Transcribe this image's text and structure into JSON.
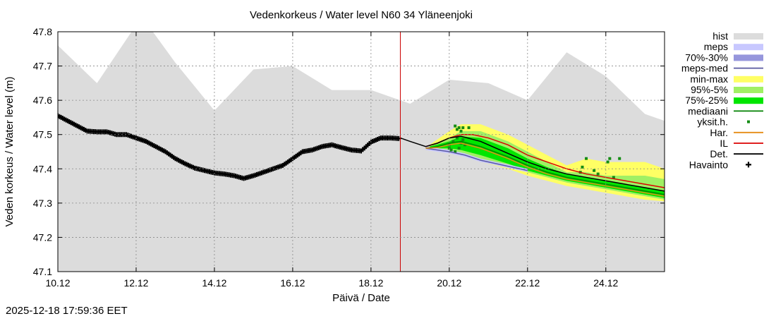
{
  "chart_data": {
    "type": "line",
    "title": "Vedenkorkeus / Water level   N60 34 Yläneenjoki",
    "xlabel": "Päivä / Date",
    "ylabel": "Veden korkeus / Water level (m)",
    "timestamp": "2025-12-18 17:59:36 EET",
    "xlim": [
      10.0,
      25.5
    ],
    "ylim": [
      47.1,
      47.8
    ],
    "x_ticks": [
      {
        "x": 10.0,
        "label": "10.12"
      },
      {
        "x": 12.0,
        "label": "12.12"
      },
      {
        "x": 14.0,
        "label": "14.12"
      },
      {
        "x": 16.0,
        "label": "16.12"
      },
      {
        "x": 18.0,
        "label": "18.12"
      },
      {
        "x": 20.0,
        "label": "20.12"
      },
      {
        "x": 22.0,
        "label": "22.12"
      },
      {
        "x": 24.0,
        "label": "24.12"
      }
    ],
    "y_ticks": [
      "47.1",
      "47.2",
      "47.3",
      "47.4",
      "47.5",
      "47.6",
      "47.7",
      "47.8"
    ],
    "forecast_start": 18.75,
    "colors": {
      "hist": "#dcdcdc",
      "meps": "#c8c8ff",
      "meps_70_30": "#9696dc",
      "meps_med": "#5a5aa0",
      "minmax": "#ffff64",
      "p95_5": "#a0f064",
      "p75_25": "#00e600",
      "median": "#008000",
      "single": "#148c14",
      "har": "#e68c14",
      "il": "#dc0000",
      "det": "#000000",
      "obs": "#000000",
      "forecast_line": "#cc0000"
    },
    "legend": [
      {
        "key": "hist",
        "label": "hist",
        "style": "band"
      },
      {
        "key": "meps",
        "label": "meps",
        "style": "band"
      },
      {
        "key": "meps_70_30",
        "label": "70%-30%",
        "style": "band"
      },
      {
        "key": "meps_med",
        "label": "meps-med",
        "style": "line"
      },
      {
        "key": "minmax",
        "label": "min-max",
        "style": "band"
      },
      {
        "key": "p95_5",
        "label": "95%-5%",
        "style": "band"
      },
      {
        "key": "p75_25",
        "label": "75%-25%",
        "style": "band"
      },
      {
        "key": "median",
        "label": "mediaani",
        "style": "line"
      },
      {
        "key": "single",
        "label": "yksit.h.",
        "style": "dot"
      },
      {
        "key": "har",
        "label": "Har.",
        "style": "line"
      },
      {
        "key": "il",
        "label": "IL",
        "style": "line"
      },
      {
        "key": "det",
        "label": "Det.",
        "style": "line"
      },
      {
        "key": "obs",
        "label": "Havainto",
        "style": "plus"
      }
    ],
    "hist_upper": [
      [
        10.0,
        47.76
      ],
      [
        11.0,
        47.65
      ],
      [
        12.0,
        47.82
      ],
      [
        12.3,
        47.82
      ],
      [
        13.0,
        47.71
      ],
      [
        14.0,
        47.57
      ],
      [
        15.0,
        47.69
      ],
      [
        16.0,
        47.7
      ],
      [
        17.0,
        47.63
      ],
      [
        18.0,
        47.63
      ],
      [
        19.0,
        47.59
      ],
      [
        20.0,
        47.66
      ],
      [
        21.0,
        47.65
      ],
      [
        22.0,
        47.6
      ],
      [
        23.0,
        47.74
      ],
      [
        24.0,
        47.67
      ],
      [
        25.0,
        47.56
      ],
      [
        25.5,
        47.54
      ]
    ],
    "minmax": {
      "x": [
        19.5,
        20.0,
        20.3,
        20.8,
        21.5,
        22.0,
        22.5,
        23.0,
        23.5,
        24.0,
        24.5,
        25.0,
        25.5
      ],
      "lo": [
        47.455,
        47.45,
        47.44,
        47.42,
        47.4,
        47.38,
        47.365,
        47.35,
        47.34,
        47.33,
        47.32,
        47.31,
        47.305
      ],
      "hi": [
        47.47,
        47.51,
        47.53,
        47.53,
        47.5,
        47.47,
        47.44,
        47.41,
        47.43,
        47.42,
        47.42,
        47.42,
        47.4
      ]
    },
    "p95_5": {
      "x": [
        19.5,
        20.0,
        20.3,
        20.8,
        21.5,
        22.0,
        22.5,
        23.0,
        23.5,
        24.0,
        24.5,
        25.0,
        25.5
      ],
      "lo": [
        47.46,
        47.455,
        47.445,
        47.43,
        47.405,
        47.39,
        47.375,
        47.36,
        47.35,
        47.34,
        47.33,
        47.32,
        47.31
      ],
      "hi": [
        47.465,
        47.49,
        47.51,
        47.51,
        47.48,
        47.45,
        47.42,
        47.39,
        47.39,
        47.38,
        47.38,
        47.38,
        47.37
      ]
    },
    "p75_25": {
      "x": [
        19.5,
        20.0,
        20.3,
        20.8,
        21.5,
        22.0,
        22.5,
        23.0,
        23.5,
        24.0,
        24.5,
        25.0,
        25.5
      ],
      "lo": [
        47.46,
        47.46,
        47.455,
        47.44,
        47.415,
        47.395,
        47.38,
        47.365,
        47.355,
        47.345,
        47.335,
        47.325,
        47.315
      ],
      "hi": [
        47.465,
        47.48,
        47.495,
        47.49,
        47.46,
        47.43,
        47.405,
        47.385,
        47.375,
        47.365,
        47.355,
        47.345,
        47.335
      ]
    },
    "median": {
      "x": [
        19.4,
        19.7,
        20.0,
        20.3,
        20.8,
        21.5,
        22.0,
        22.5,
        23.0,
        23.5,
        24.0,
        24.5,
        25.0,
        25.5
      ],
      "y": [
        47.46,
        47.465,
        47.475,
        47.48,
        47.465,
        47.435,
        47.41,
        47.39,
        47.375,
        47.365,
        47.355,
        47.345,
        47.335,
        47.325
      ]
    },
    "det": {
      "x": [
        18.75,
        19.0,
        19.4,
        19.7,
        20.0,
        20.3,
        20.8,
        21.5,
        22.0,
        22.5,
        23.0,
        23.5,
        24.0,
        24.5,
        25.0,
        25.5
      ],
      "y": [
        47.49,
        47.48,
        47.465,
        47.475,
        47.49,
        47.495,
        47.48,
        47.445,
        47.42,
        47.4,
        47.385,
        47.375,
        47.365,
        47.355,
        47.345,
        47.335
      ]
    },
    "il": {
      "x": [
        19.4,
        19.7,
        20.0,
        20.3,
        20.6,
        21.0,
        21.5,
        22.0,
        22.5,
        23.0,
        23.5,
        24.0,
        24.5,
        25.0,
        25.5
      ],
      "y": [
        47.465,
        47.475,
        47.49,
        47.5,
        47.5,
        47.49,
        47.47,
        47.44,
        47.42,
        47.4,
        47.385,
        47.375,
        47.365,
        47.355,
        47.345
      ]
    },
    "har": {
      "x": [
        19.4,
        19.7,
        20.0,
        20.3,
        20.8,
        21.5,
        22.0,
        22.5,
        23.0,
        23.5,
        24.0,
        24.5,
        25.0,
        25.5
      ],
      "y": [
        47.46,
        47.462,
        47.47,
        47.475,
        47.46,
        47.43,
        47.405,
        47.385,
        47.37,
        47.36,
        47.35,
        47.34,
        47.33,
        47.32
      ]
    },
    "meps_med": {
      "x": [
        19.4,
        19.7,
        20.0,
        20.4,
        20.8,
        21.2,
        21.6,
        22.0
      ],
      "y": [
        47.46,
        47.455,
        47.45,
        47.44,
        47.425,
        47.415,
        47.405,
        47.395
      ]
    },
    "meps_band": {
      "x": [
        19.4,
        19.7,
        20.0,
        20.4,
        20.8,
        21.2,
        21.6,
        22.0
      ],
      "lo": [
        47.455,
        47.45,
        47.445,
        47.435,
        47.42,
        47.41,
        47.4,
        47.39
      ],
      "hi": [
        47.465,
        47.46,
        47.455,
        47.445,
        47.43,
        47.42,
        47.41,
        47.4
      ]
    },
    "singles": [
      [
        20.15,
        47.525
      ],
      [
        20.2,
        47.515
      ],
      [
        20.25,
        47.52
      ],
      [
        20.3,
        47.51
      ],
      [
        20.35,
        47.52
      ],
      [
        20.5,
        47.52
      ],
      [
        20.0,
        47.47
      ],
      [
        20.05,
        47.455
      ],
      [
        20.1,
        47.48
      ],
      [
        20.2,
        47.49
      ],
      [
        20.25,
        47.46
      ],
      [
        20.3,
        47.475
      ],
      [
        20.35,
        47.485
      ],
      [
        20.15,
        47.45
      ],
      [
        20.4,
        47.47
      ],
      [
        20.0,
        47.46
      ],
      [
        23.5,
        47.43
      ],
      [
        23.4,
        47.405
      ],
      [
        23.35,
        47.39
      ],
      [
        23.7,
        47.395
      ],
      [
        23.8,
        47.385
      ],
      [
        24.1,
        47.43
      ],
      [
        24.05,
        47.42
      ],
      [
        24.35,
        47.43
      ],
      [
        24.2,
        47.375
      ]
    ],
    "observed": {
      "x": [
        10.0,
        10.25,
        10.5,
        10.75,
        11.0,
        11.25,
        11.5,
        11.75,
        12.0,
        12.25,
        12.5,
        12.75,
        13.0,
        13.25,
        13.5,
        13.75,
        14.0,
        14.25,
        14.5,
        14.75,
        15.0,
        15.25,
        15.5,
        15.75,
        16.0,
        16.25,
        16.5,
        16.75,
        17.0,
        17.25,
        17.5,
        17.75,
        18.0,
        18.25,
        18.5,
        18.75
      ],
      "y": [
        47.555,
        47.54,
        47.525,
        47.51,
        47.508,
        47.508,
        47.5,
        47.5,
        47.49,
        47.48,
        47.465,
        47.45,
        47.43,
        47.415,
        47.402,
        47.395,
        47.388,
        47.385,
        47.38,
        47.372,
        47.38,
        47.39,
        47.4,
        47.41,
        47.43,
        47.45,
        47.455,
        47.465,
        47.47,
        47.462,
        47.455,
        47.452,
        47.478,
        47.49,
        47.49,
        47.488
      ]
    }
  }
}
